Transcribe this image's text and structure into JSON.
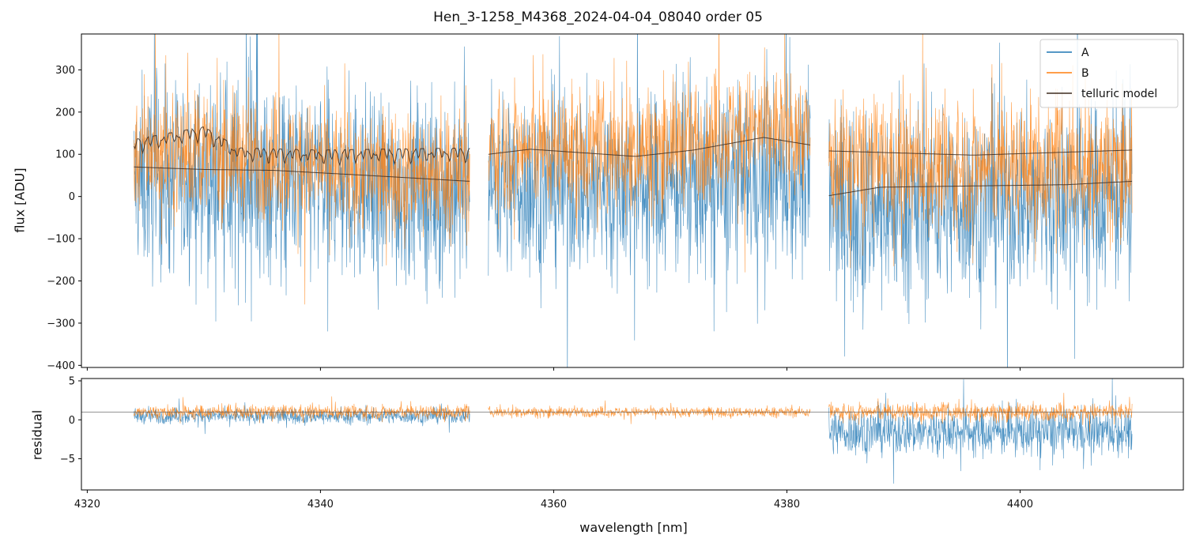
{
  "chart_data": [
    {
      "type": "line",
      "panel": "top",
      "title": "Hen_3-1258_M4368_2024-04-04_08040  order 05",
      "xlabel": "",
      "ylabel": "flux [ADU]",
      "xlim": [
        4319.5,
        4414.0
      ],
      "ylim": [
        -405,
        385
      ],
      "yticks": [
        -400,
        -300,
        -200,
        -100,
        0,
        100,
        200,
        300
      ],
      "ytick_labels": [
        "−400",
        "−300",
        "−200",
        "−100",
        "0",
        "100",
        "200",
        "300"
      ],
      "xticks": [
        4320,
        4340,
        4360,
        4380,
        4400
      ],
      "legend": {
        "placement": "top-right",
        "entries": [
          "A",
          "B",
          "telluric model"
        ]
      },
      "segments": [
        {
          "x_start": 4324.0,
          "x_end": 4352.8,
          "A_center": [
            [
              4324,
              40
            ],
            [
              4333,
              40
            ],
            [
              4343,
              20
            ],
            [
              4352.8,
              10
            ]
          ],
          "A_noise": 210,
          "B_center": [
            [
              4324,
              110
            ],
            [
              4333,
              100
            ],
            [
              4343,
              60
            ],
            [
              4352.8,
              60
            ]
          ],
          "B_noise": 130,
          "telluric_A": [
            [
              4324,
              70
            ],
            [
              4330,
              64
            ],
            [
              4336,
              62
            ],
            [
              4344,
              50
            ],
            [
              4352.8,
              36
            ]
          ],
          "telluric_B": [
            [
              4324,
              135
            ],
            [
              4330,
              165
            ],
            [
              4333,
              115
            ],
            [
              4340,
              110
            ],
            [
              4352.8,
              115
            ]
          ]
        },
        {
          "x_start": 4354.4,
          "x_end": 4382.0,
          "A_center": [
            [
              4354.4,
              30
            ],
            [
              4366,
              20
            ],
            [
              4376,
              40
            ],
            [
              4382,
              50
            ]
          ],
          "A_noise": 200,
          "B_center": [
            [
              4354.4,
              110
            ],
            [
              4366,
              110
            ],
            [
              4378,
              160
            ],
            [
              4382,
              150
            ]
          ],
          "B_noise": 130,
          "telluric_A": [],
          "telluric_B": [
            [
              4354.4,
              100
            ],
            [
              4358,
              112
            ],
            [
              4367,
              95
            ],
            [
              4372,
              110
            ],
            [
              4378,
              140
            ],
            [
              4382,
              122
            ]
          ]
        },
        {
          "x_start": 4383.6,
          "x_end": 4409.6,
          "A_center": [
            [
              4383.6,
              -20
            ],
            [
              4396,
              -10
            ],
            [
              4409.6,
              0
            ]
          ],
          "A_noise": 210,
          "B_center": [
            [
              4383.6,
              80
            ],
            [
              4396,
              70
            ],
            [
              4409.6,
              80
            ]
          ],
          "B_noise": 140,
          "telluric_A": [
            [
              4383.6,
              2
            ],
            [
              4388,
              22
            ],
            [
              4396,
              25
            ],
            [
              4404,
              28
            ],
            [
              4409.6,
              36
            ]
          ],
          "telluric_B": [
            [
              4383.6,
              108
            ],
            [
              4396,
              98
            ],
            [
              4409.6,
              110
            ]
          ]
        }
      ]
    },
    {
      "type": "line",
      "panel": "bottom",
      "xlabel": "wavelength [nm]",
      "ylabel": "residual",
      "xlim": [
        4319.5,
        4414.0
      ],
      "ylim": [
        -9.0,
        5.3
      ],
      "yticks": [
        -5,
        0,
        5
      ],
      "ytick_labels": [
        "−5",
        "0",
        "5"
      ],
      "xticks": [
        4320,
        4340,
        4360,
        4380,
        4400
      ],
      "xtick_labels": [
        "4320",
        "4340",
        "4360",
        "4380",
        "4400"
      ],
      "reference_line_y": 1.0,
      "segments": [
        {
          "x_start": 4324.0,
          "x_end": 4352.8,
          "A_center": 0.5,
          "A_noise": 0.9,
          "B_center": 1.0,
          "B_noise": 0.8
        },
        {
          "x_start": 4354.4,
          "x_end": 4382.0,
          "A_center": null,
          "A_noise": 0,
          "B_center": 1.0,
          "B_noise": 0.6
        },
        {
          "x_start": 4383.6,
          "x_end": 4409.6,
          "A_center": -1.5,
          "A_noise": 2.8,
          "B_center": 1.0,
          "B_noise": 1.0
        }
      ]
    }
  ],
  "colors": {
    "A": "#1f77b4",
    "B": "#ff7f0e",
    "telluric": "#3d2b1f",
    "axes": "#000000"
  }
}
